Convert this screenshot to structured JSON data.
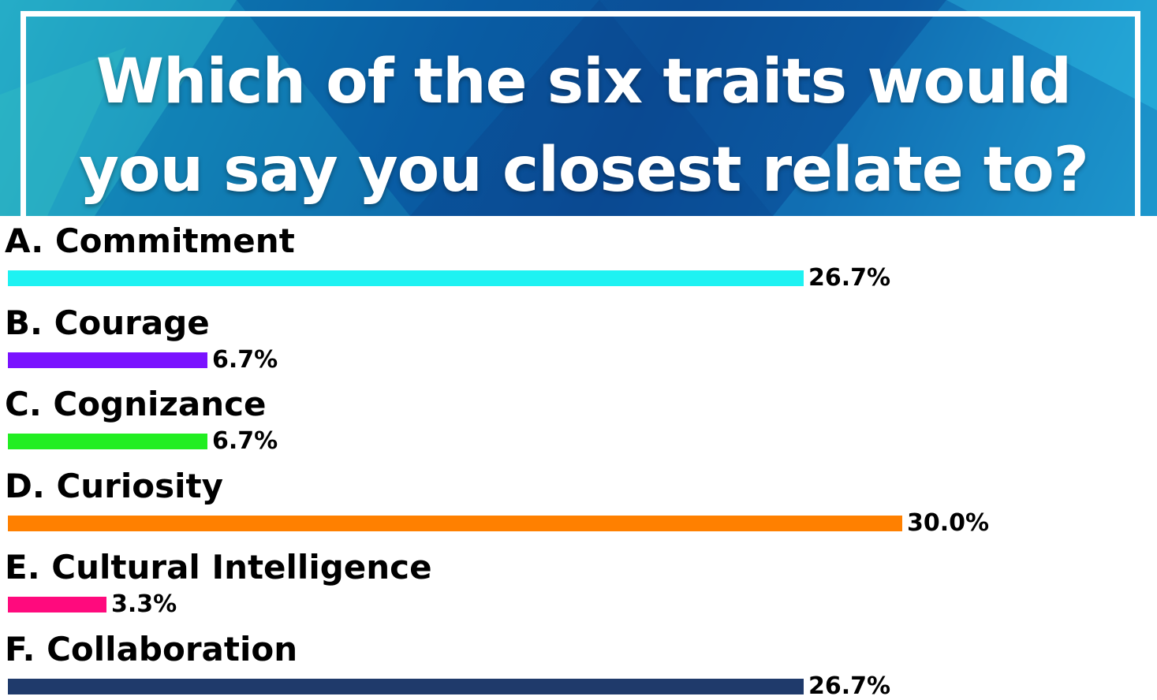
{
  "banner": {
    "title": "Which of the six traits would you say you closest relate to?"
  },
  "chart_data": {
    "type": "bar",
    "orientation": "horizontal",
    "title": "Which of the six traits would you say you closest relate to?",
    "categories": [
      "A. Commitment",
      "B. Courage",
      "C. Cognizance",
      "D. Curiosity",
      "E. Cultural Intelligence",
      "F. Collaboration"
    ],
    "values": [
      26.7,
      6.7,
      6.7,
      30.0,
      3.3,
      26.7
    ],
    "value_labels": [
      "26.7%",
      "6.7%",
      "6.7%",
      "30.0%",
      "3.3%",
      "26.7%"
    ],
    "unit": "%",
    "colors": [
      "#1ef2f2",
      "#7a12ff",
      "#22ee22",
      "#ff8000",
      "#ff0a7d",
      "#1f3a6b"
    ],
    "xlim": [
      0,
      30.0
    ],
    "grid": false,
    "legend": "none"
  }
}
